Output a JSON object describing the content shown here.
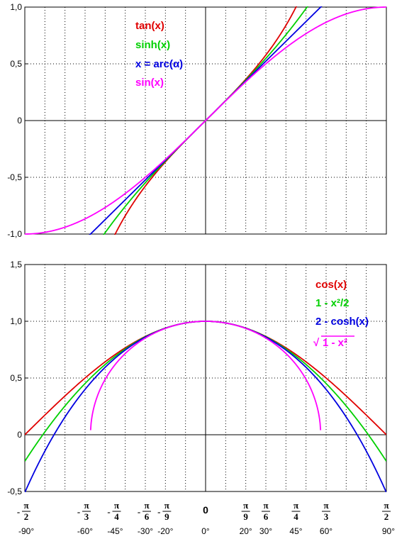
{
  "colors": {
    "red": "#e00000",
    "green": "#00d000",
    "blue": "#0000e0",
    "magenta": "#ff00ff"
  },
  "chart_data": [
    {
      "type": "line",
      "x_unit": "degrees",
      "xlim": [
        -90,
        90
      ],
      "ylim": [
        -1.0,
        1.0
      ],
      "yticks": [
        "1,0",
        "0,5",
        "0",
        "-0,5",
        "-1,0"
      ],
      "ytick_values": [
        1.0,
        0.5,
        0,
        -0.5,
        -1.0
      ],
      "grid": true,
      "legend_position": "top-left",
      "series": [
        {
          "name": "tan(x)",
          "color": "red",
          "function": "tan"
        },
        {
          "name": "sinh(x)",
          "color": "green",
          "function": "sinh"
        },
        {
          "name": "x = arc(α)",
          "color": "blue",
          "function": "arc"
        },
        {
          "name": "sin(x)",
          "color": "magenta",
          "function": "sin"
        }
      ]
    },
    {
      "type": "line",
      "x_unit": "degrees",
      "xlim": [
        -90,
        90
      ],
      "ylim": [
        -0.5,
        1.5
      ],
      "yticks": [
        "1,5",
        "1,0",
        "0,5",
        "0",
        "-0,5"
      ],
      "ytick_values": [
        1.5,
        1.0,
        0.5,
        0,
        -0.5
      ],
      "grid": true,
      "legend_position": "top-right",
      "series": [
        {
          "name": "cos(x)",
          "color": "red",
          "function": "cos"
        },
        {
          "name": "1 - x²/2",
          "color": "green",
          "function": "taylor"
        },
        {
          "name": "2 - cosh(x)",
          "color": "blue",
          "function": "twominuscosh"
        },
        {
          "name": "1 - x²",
          "color": "magenta",
          "function": "sqrt",
          "prefix": "√"
        }
      ],
      "xticks": [
        {
          "deg": -90,
          "sign": "-",
          "num": "π",
          "den": "2",
          "label": "-90°"
        },
        {
          "deg": -60,
          "sign": "-",
          "num": "π",
          "den": "3",
          "label": "-60°"
        },
        {
          "deg": -45,
          "sign": "-",
          "num": "π",
          "den": "4",
          "label": "-45°"
        },
        {
          "deg": -30,
          "sign": "-",
          "num": "π",
          "den": "6",
          "label": "-30°"
        },
        {
          "deg": -20,
          "sign": "-",
          "num": "π",
          "den": "9",
          "label": "-20°"
        },
        {
          "deg": 0,
          "zero": "0",
          "label": "0°"
        },
        {
          "deg": 20,
          "sign": "",
          "num": "π",
          "den": "9",
          "label": "20°"
        },
        {
          "deg": 30,
          "sign": "",
          "num": "π",
          "den": "6",
          "label": "30°"
        },
        {
          "deg": 45,
          "sign": "",
          "num": "π",
          "den": "4",
          "label": "45°"
        },
        {
          "deg": 60,
          "sign": "",
          "num": "π",
          "den": "3",
          "label": "60°"
        },
        {
          "deg": 90,
          "sign": "",
          "num": "π",
          "den": "2",
          "label": "90°"
        }
      ]
    }
  ]
}
